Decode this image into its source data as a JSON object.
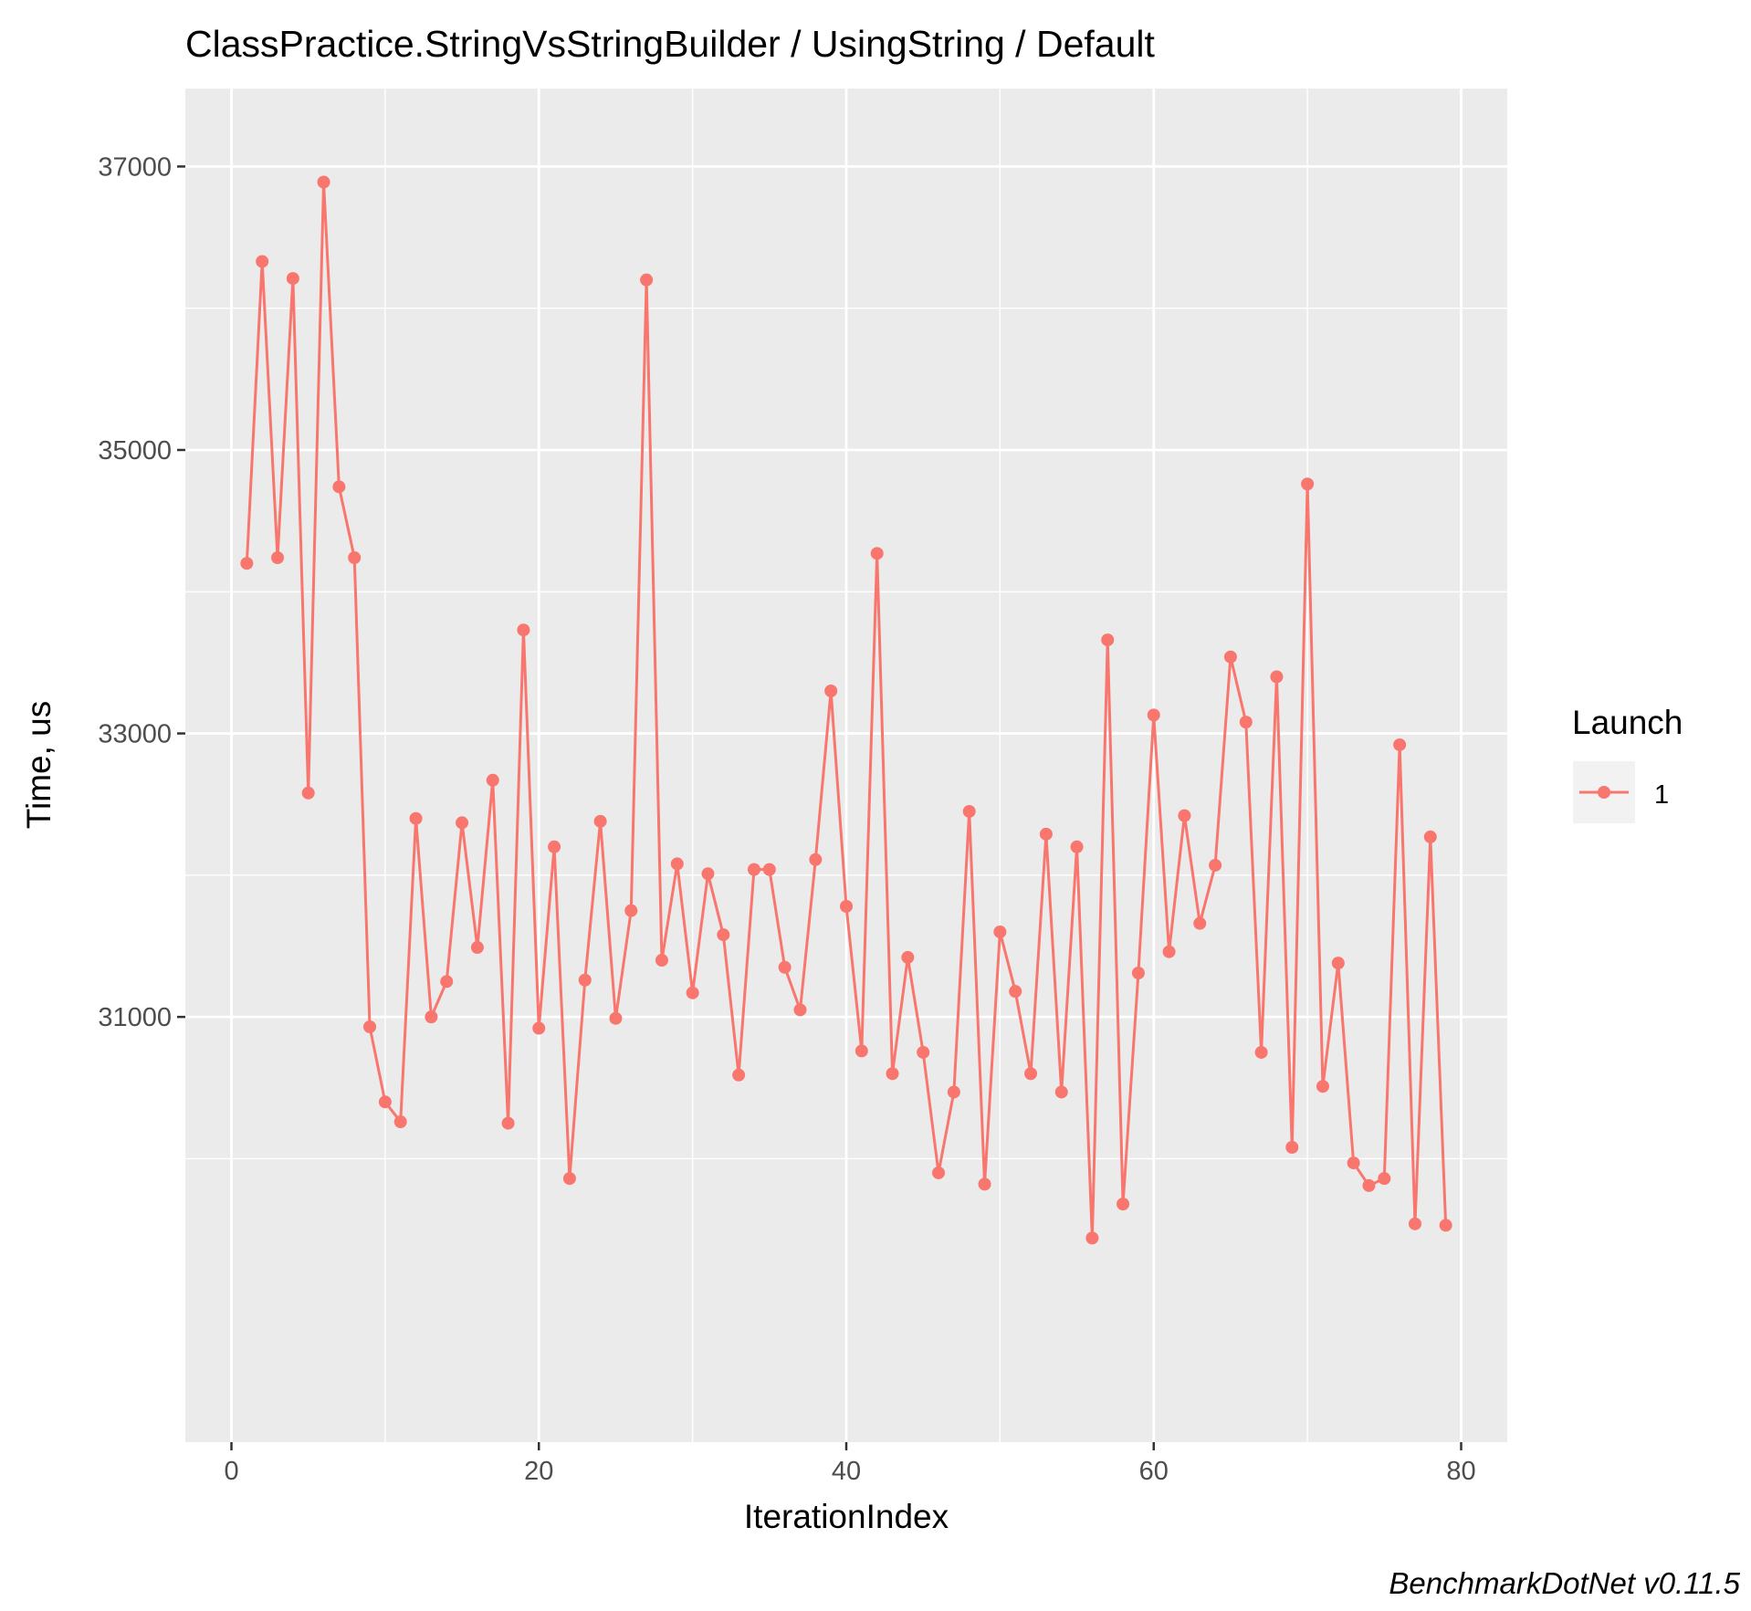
{
  "chart_data": {
    "type": "line",
    "title": "ClassPractice.StringVsStringBuilder / UsingString / Default",
    "xlabel": "IterationIndex",
    "ylabel": "Time, us",
    "caption": "BenchmarkDotNet v0.11.5",
    "xlim": [
      -3,
      83
    ],
    "ylim": [
      28000,
      37550
    ],
    "x_ticks": [
      0,
      20,
      40,
      60,
      80
    ],
    "y_ticks": [
      31000,
      33000,
      35000,
      37000
    ],
    "x_tick_labels": [
      "0",
      "20",
      "40",
      "60",
      "80"
    ],
    "y_tick_labels": [
      "31000",
      "33000",
      "35000",
      "37000"
    ],
    "grid": true,
    "legend": {
      "title": "Launch",
      "position": "right",
      "entries": [
        "1"
      ]
    },
    "colors": {
      "series": "#F8766D",
      "panel": "#EBEBEB",
      "grid": "#FFFFFF"
    },
    "series": [
      {
        "name": "1",
        "x": [
          1,
          2,
          3,
          4,
          5,
          6,
          7,
          8,
          9,
          10,
          11,
          12,
          13,
          14,
          15,
          16,
          17,
          18,
          19,
          20,
          21,
          22,
          23,
          24,
          25,
          26,
          27,
          28,
          29,
          30,
          31,
          32,
          33,
          34,
          35,
          36,
          37,
          38,
          39,
          40,
          41,
          42,
          43,
          44,
          45,
          46,
          47,
          48,
          49,
          50,
          51,
          52,
          53,
          54,
          55,
          56,
          57,
          58,
          59,
          60,
          61,
          62,
          63,
          64,
          65,
          66,
          67,
          68,
          69,
          70,
          71,
          72,
          73,
          74,
          75,
          76,
          77,
          78,
          79
        ],
        "values": [
          34200,
          36330,
          34240,
          36210,
          32580,
          36890,
          34740,
          34240,
          30930,
          30400,
          30260,
          32400,
          31000,
          31250,
          32370,
          31490,
          32670,
          30250,
          33730,
          30920,
          32200,
          29860,
          31260,
          32380,
          30990,
          31750,
          36200,
          31400,
          32080,
          31170,
          32010,
          31580,
          30590,
          32040,
          32040,
          31350,
          31050,
          32110,
          33300,
          31780,
          30760,
          34270,
          30600,
          31420,
          30750,
          29900,
          30470,
          32450,
          29820,
          31600,
          31180,
          30600,
          32290,
          30470,
          32200,
          29440,
          33660,
          29680,
          31310,
          33130,
          31460,
          32420,
          31660,
          32070,
          33540,
          33080,
          30750,
          33400,
          30080,
          34760,
          30510,
          31380,
          29970,
          29810,
          29860,
          32920,
          29540,
          32270,
          29530
        ]
      }
    ]
  }
}
